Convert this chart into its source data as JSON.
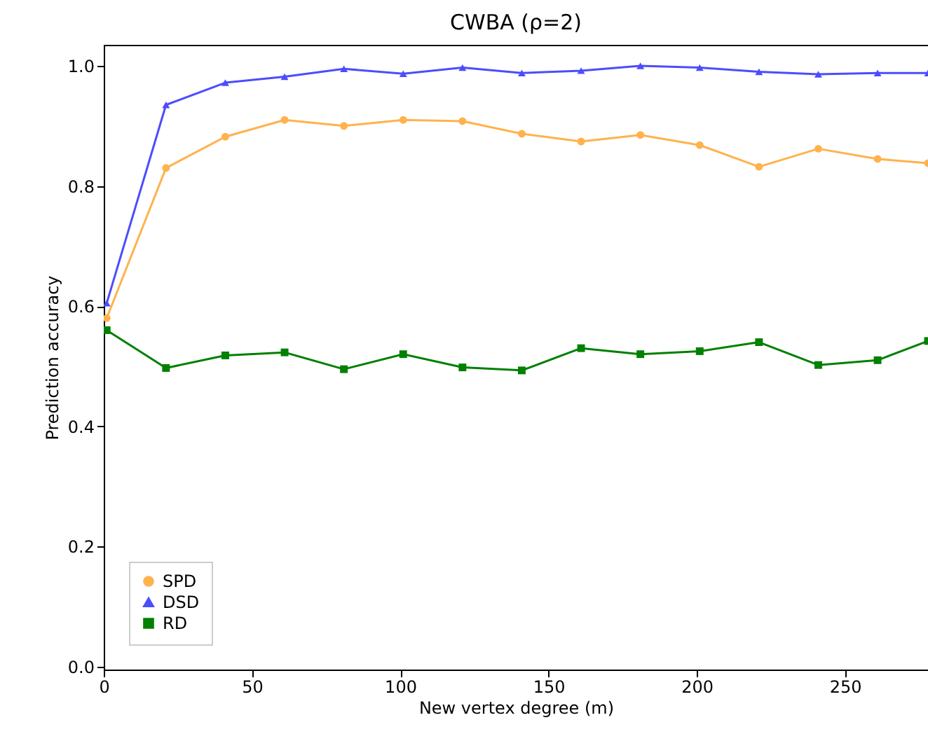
{
  "chart_data": {
    "type": "line",
    "title": "CWBA (ρ=2)",
    "xlabel": "New vertex degree (m)",
    "ylabel": "Prediction accuracy",
    "x": [
      1,
      21,
      41,
      61,
      81,
      101,
      121,
      141,
      161,
      181,
      201,
      221,
      241,
      261,
      278
    ],
    "xlim": [
      0,
      278
    ],
    "xticks": [
      0,
      50,
      100,
      150,
      200,
      250
    ],
    "ylim": [
      -0.005,
      1.035
    ],
    "yticks": [
      {
        "value": 0,
        "label": "0.0"
      },
      {
        "value": 0.2,
        "label": "0.2"
      },
      {
        "value": 0.4,
        "label": "0.4"
      },
      {
        "value": 0.6,
        "label": "0.6"
      },
      {
        "value": 0.8,
        "label": "0.8"
      },
      {
        "value": 1,
        "label": "1.0"
      }
    ],
    "grid": false,
    "legend": "bottom left",
    "series": [
      {
        "name": "SPD",
        "color": "#ffb24d",
        "marker": "circle",
        "values": [
          0.58,
          0.83,
          0.882,
          0.91,
          0.9,
          0.91,
          0.908,
          0.887,
          0.874,
          0.885,
          0.868,
          0.832,
          0.862,
          0.845,
          0.838
        ]
      },
      {
        "name": "DSD",
        "color": "#4c4cff",
        "marker": "triangle",
        "values": [
          0.605,
          0.935,
          0.972,
          0.982,
          0.995,
          0.987,
          0.997,
          0.988,
          0.992,
          1.0,
          0.997,
          0.99,
          0.986,
          0.988,
          0.988
        ]
      },
      {
        "name": "RD",
        "color": "#008000",
        "marker": "square",
        "values": [
          0.56,
          0.497,
          0.518,
          0.523,
          0.495,
          0.52,
          0.498,
          0.493,
          0.53,
          0.52,
          0.525,
          0.54,
          0.502,
          0.51,
          0.542
        ]
      }
    ]
  }
}
